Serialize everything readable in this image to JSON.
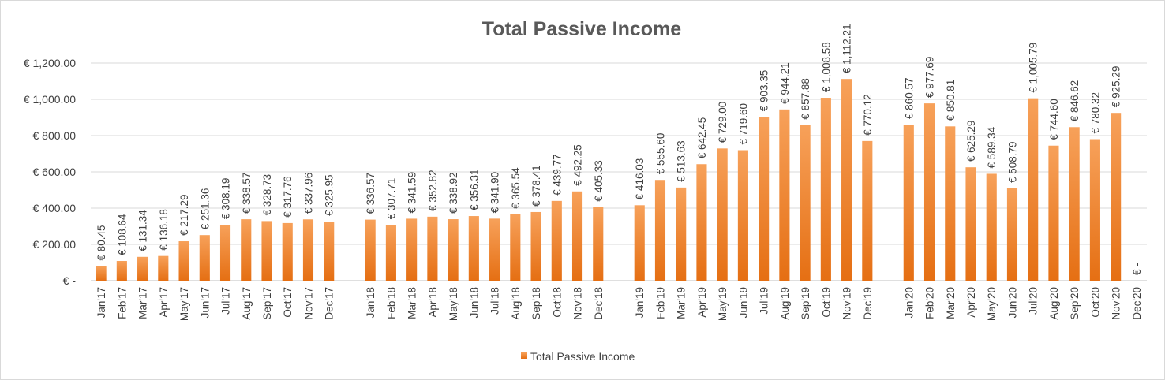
{
  "colors": {
    "bar_top": "#f7a15a",
    "bar_bottom": "#e56f13",
    "grid": "#d9d9d9",
    "text": "#404040",
    "title": "#595959"
  },
  "chart_data": {
    "type": "bar",
    "title": "Total Passive Income",
    "xlabel": "",
    "ylabel": "",
    "ylim": [
      0,
      1300
    ],
    "yticks": [
      0,
      200,
      400,
      600,
      800,
      1000,
      1200
    ],
    "ytick_labels": [
      "€ -",
      "€ 200.00",
      "€ 400.00",
      "€ 600.00",
      "€ 800.00",
      "€ 1,000.00",
      "€ 1,200.00"
    ],
    "grid": true,
    "legend": {
      "position": "bottom",
      "entries": [
        "Total Passive Income"
      ]
    },
    "categories": [
      "Jan'17",
      "Feb'17",
      "Mar'17",
      "Apr'17",
      "May'17",
      "Jun'17",
      "Jul'17",
      "Aug'17",
      "Sep'17",
      "Oct'17",
      "Nov'17",
      "Dec'17",
      "",
      "Jan'18",
      "Feb'18",
      "Mar'18",
      "Apr'18",
      "May'18",
      "Jun'18",
      "Jul'18",
      "Aug'18",
      "Sep'18",
      "Oct'18",
      "Nov'18",
      "Dec'18",
      "",
      "Jan'19",
      "Feb'19",
      "Mar'19",
      "Apr'19",
      "May'19",
      "Jun'19",
      "Jul'19",
      "Aug'19",
      "Sep'19",
      "Oct'19",
      "Nov'19",
      "Dec'19",
      "",
      "Jan'20",
      "Feb'20",
      "Mar'20",
      "Apr'20",
      "May'20",
      "Jun'20",
      "Jul'20",
      "Aug'20",
      "Sep'20",
      "Oct'20",
      "Nov'20",
      "Dec'20"
    ],
    "series": [
      {
        "name": "Total Passive Income",
        "values": [
          80.45,
          108.64,
          131.34,
          136.18,
          217.29,
          251.36,
          308.19,
          338.57,
          328.73,
          317.76,
          337.96,
          325.95,
          null,
          336.57,
          307.71,
          341.59,
          352.82,
          338.92,
          356.31,
          341.9,
          365.54,
          378.41,
          439.77,
          492.25,
          405.33,
          null,
          416.03,
          555.6,
          513.63,
          642.45,
          729.0,
          719.6,
          903.35,
          944.21,
          857.88,
          1008.58,
          1112.21,
          770.12,
          null,
          860.57,
          977.69,
          850.81,
          625.29,
          589.34,
          508.79,
          1005.79,
          744.6,
          846.62,
          780.32,
          925.29,
          0
        ],
        "data_labels": [
          "€ 80.45",
          "€ 108.64",
          "€ 131.34",
          "€ 136.18",
          "€ 217.29",
          "€ 251.36",
          "€ 308.19",
          "€ 338.57",
          "€ 328.73",
          "€ 317.76",
          "€ 337.96",
          "€ 325.95",
          "",
          "€ 336.57",
          "€ 307.71",
          "€ 341.59",
          "€ 352.82",
          "€ 338.92",
          "€ 356.31",
          "€ 341.90",
          "€ 365.54",
          "€ 378.41",
          "€ 439.77",
          "€ 492.25",
          "€ 405.33",
          "",
          "€ 416.03",
          "€ 555.60",
          "€ 513.63",
          "€ 642.45",
          "€ 729.00",
          "€ 719.60",
          "€ 903.35",
          "€ 944.21",
          "€ 857.88",
          "€ 1,008.58",
          "€ 1,112.21",
          "€ 770.12",
          "",
          "€ 860.57",
          "€ 977.69",
          "€ 850.81",
          "€ 625.29",
          "€ 589.34",
          "€ 508.79",
          "€ 1,005.79",
          "€ 744.60",
          "€ 846.62",
          "€ 780.32",
          "€ 925.29",
          "€ -"
        ]
      }
    ]
  }
}
